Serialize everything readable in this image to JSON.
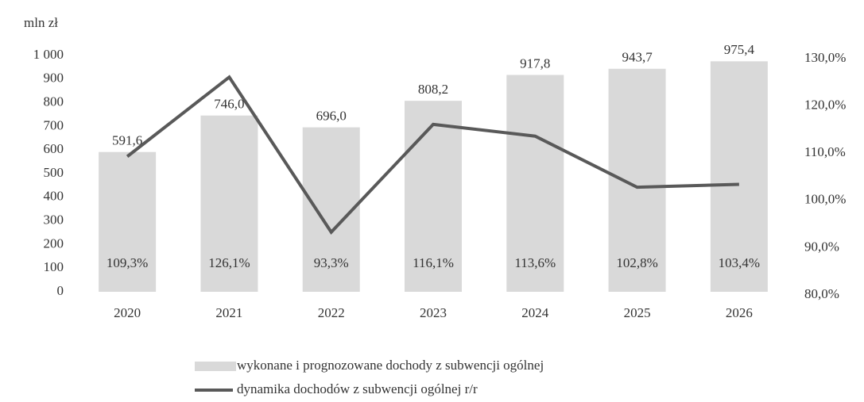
{
  "chart_data": {
    "type": "bar",
    "y_axis_label": "mln zł",
    "categories": [
      "2020",
      "2021",
      "2022",
      "2023",
      "2024",
      "2025",
      "2026"
    ],
    "series": [
      {
        "name": "wykonane i prognozowane dochody z subwencji ogólnej",
        "type": "bar",
        "color": "#d9d9d9",
        "values": [
          591.6,
          746.0,
          696.0,
          808.2,
          917.8,
          943.7,
          975.4
        ],
        "value_labels": [
          "591,6",
          "746,0",
          "696,0",
          "808,2",
          "917,8",
          "943,7",
          "975,4"
        ]
      },
      {
        "name": "dynamika dochodów z subwencji ogólnej r/r",
        "type": "line",
        "axis": "y2",
        "color": "#595959",
        "values": [
          109.3,
          126.1,
          93.3,
          116.1,
          113.6,
          102.8,
          103.4
        ],
        "value_labels": [
          "109,3%",
          "126,1%",
          "93,3%",
          "116,1%",
          "113,6%",
          "102,8%",
          "103,4%"
        ]
      }
    ],
    "ylim": [
      0,
      1000
    ],
    "yticks": [
      0,
      100,
      200,
      300,
      400,
      500,
      600,
      700,
      800,
      900,
      {
        "value": 1000,
        "label": "1 000"
      }
    ],
    "y2lim": [
      80,
      130
    ],
    "y2ticks": [
      {
        "value": 80,
        "label": "80,0%"
      },
      {
        "value": 90,
        "label": "90,0%"
      },
      {
        "value": 100,
        "label": "100,0%"
      },
      {
        "value": 110,
        "label": "110,0%"
      },
      {
        "value": 120,
        "label": "120,0%"
      },
      {
        "value": 130,
        "label": "130,0%"
      }
    ],
    "grid": false,
    "legend": "bottom"
  }
}
